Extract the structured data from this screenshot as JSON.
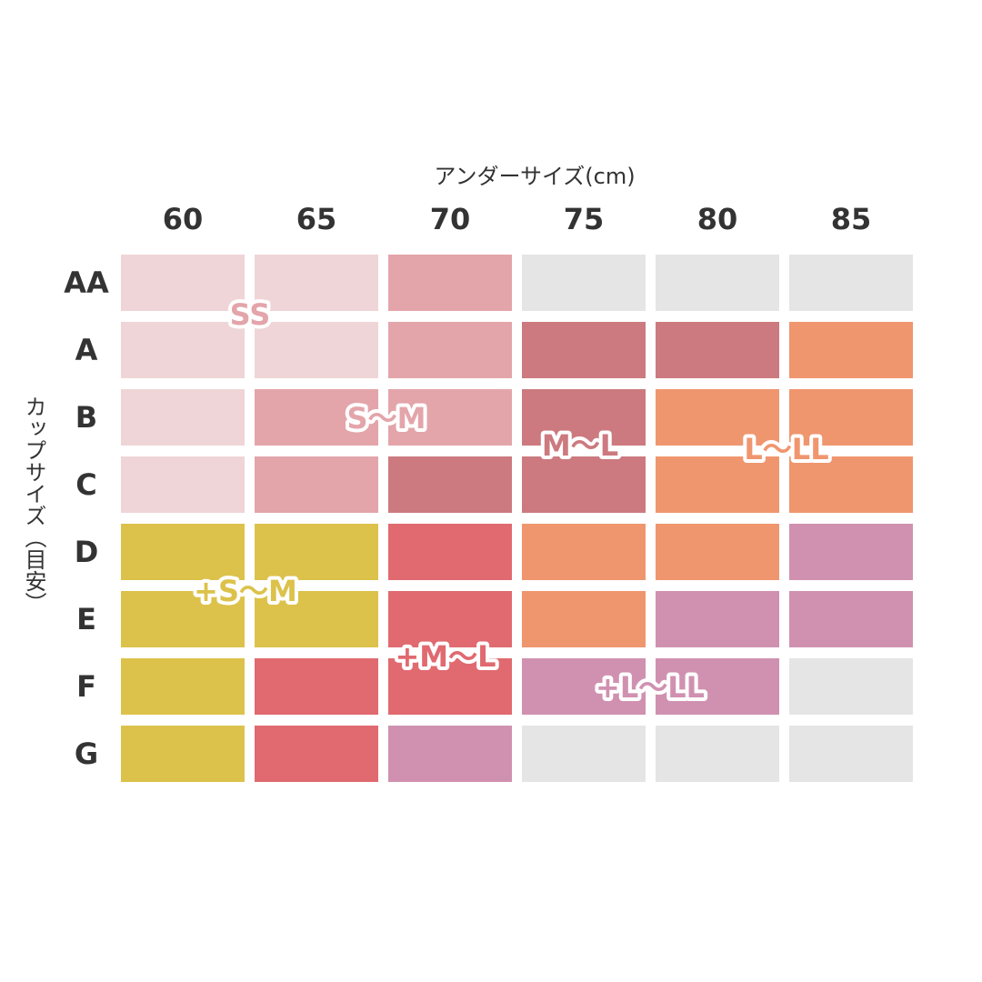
{
  "x_axis_title": "アンダーサイズ(cm)",
  "y_axis_title": "カップサイズ（目安）",
  "columns": [
    "60",
    "65",
    "70",
    "75",
    "80",
    "85"
  ],
  "rows": [
    "AA",
    "A",
    "B",
    "C",
    "D",
    "E",
    "F",
    "G"
  ],
  "groups": [
    {
      "label": "SS",
      "color": "#efd5d7",
      "text_color": "#e3a5aa"
    },
    {
      "label": "S〜M",
      "color": "#e3a5aa",
      "text_color": "#e3a5aa"
    },
    {
      "label": "M〜L",
      "color": "#cc7a7f",
      "text_color": "#cc7a7f"
    },
    {
      "label": "L〜LL",
      "color": "#f0966f",
      "text_color": "#f0966f"
    },
    {
      "label": "+S〜M",
      "color": "#dcc24b",
      "text_color": "#dcc24b"
    },
    {
      "label": "+M〜L",
      "color": "#e06a70",
      "text_color": "#e06a70"
    },
    {
      "label": "+L〜LL",
      "color": "#d091b0",
      "text_color": "#d091b0"
    }
  ],
  "empty_color": "#e5e5e5",
  "cells": [
    [
      0,
      0,
      1,
      null,
      null,
      null
    ],
    [
      0,
      0,
      1,
      2,
      2,
      3
    ],
    [
      0,
      1,
      1,
      2,
      3,
      3
    ],
    [
      0,
      1,
      2,
      2,
      3,
      3
    ],
    [
      4,
      4,
      5,
      3,
      3,
      6
    ],
    [
      4,
      4,
      5,
      3,
      6,
      6
    ],
    [
      4,
      5,
      5,
      6,
      6,
      null
    ],
    [
      4,
      5,
      6,
      null,
      null,
      null
    ]
  ]
}
